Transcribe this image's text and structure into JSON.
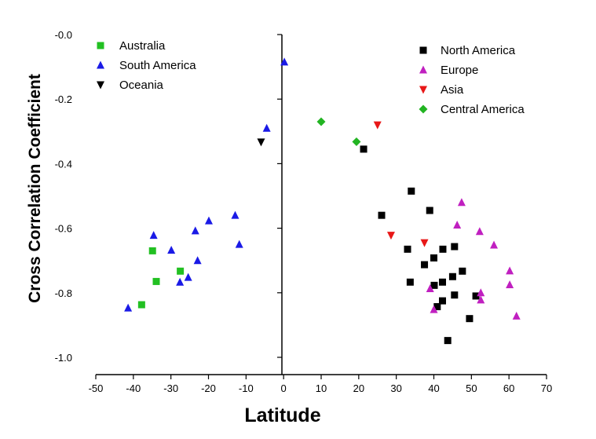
{
  "chart_data": {
    "type": "scatter",
    "xlabel": "Latitude",
    "ylabel": "Cross Correlation Coefficient",
    "xlim": [
      -50,
      70
    ],
    "ylim": [
      -1.05,
      0.0
    ],
    "xticks": [
      "-50",
      "-40",
      "-30",
      "-20",
      "-10",
      "0",
      "10",
      "20",
      "30",
      "40",
      "50",
      "60",
      "70"
    ],
    "yticks": [
      "-0.0",
      "-0.2",
      "-0.4",
      "-0.6",
      "-0.8",
      "-1.0"
    ],
    "grid": false,
    "series": [
      {
        "name": "Australia",
        "marker": "square",
        "color": "#22c022",
        "points": [
          [
            -34.9,
            -0.67
          ],
          [
            -33.9,
            -0.765
          ],
          [
            -27.5,
            -0.733
          ],
          [
            -37.8,
            -0.837
          ]
        ]
      },
      {
        "name": "South America",
        "marker": "triangle-up",
        "color": "#1a1ae6",
        "points": [
          [
            0.2,
            -0.085
          ],
          [
            -4.5,
            -0.29
          ],
          [
            -12.9,
            -0.56
          ],
          [
            -11.8,
            -0.65
          ],
          [
            -19.9,
            -0.577
          ],
          [
            -23.5,
            -0.608
          ],
          [
            -22.9,
            -0.7
          ],
          [
            -25.4,
            -0.752
          ],
          [
            -27.6,
            -0.767
          ],
          [
            -29.9,
            -0.668
          ],
          [
            -34.6,
            -0.622
          ],
          [
            -41.4,
            -0.847
          ]
        ]
      },
      {
        "name": "Oceania",
        "marker": "triangle-down",
        "color": "#000000",
        "points": [
          [
            -6.0,
            -0.333
          ]
        ]
      },
      {
        "name": "North America",
        "marker": "square",
        "color": "#000000",
        "points": [
          [
            21.3,
            -0.355
          ],
          [
            34.0,
            -0.485
          ],
          [
            26.1,
            -0.56
          ],
          [
            38.9,
            -0.545
          ],
          [
            33.0,
            -0.665
          ],
          [
            37.5,
            -0.713
          ],
          [
            40.0,
            -0.692
          ],
          [
            42.4,
            -0.665
          ],
          [
            45.5,
            -0.657
          ],
          [
            47.6,
            -0.733
          ],
          [
            45.0,
            -0.75
          ],
          [
            42.3,
            -0.767
          ],
          [
            40.1,
            -0.777
          ],
          [
            33.7,
            -0.767
          ],
          [
            45.5,
            -0.807
          ],
          [
            42.3,
            -0.825
          ],
          [
            40.9,
            -0.843
          ],
          [
            49.5,
            -0.88
          ],
          [
            43.7,
            -0.948
          ],
          [
            51.2,
            -0.81
          ]
        ]
      },
      {
        "name": "Europe",
        "marker": "triangle-up",
        "color": "#c020c0",
        "points": [
          [
            47.4,
            -0.52
          ],
          [
            46.2,
            -0.59
          ],
          [
            52.2,
            -0.61
          ],
          [
            56.0,
            -0.652
          ],
          [
            60.2,
            -0.732
          ],
          [
            60.2,
            -0.775
          ],
          [
            52.5,
            -0.8
          ],
          [
            52.5,
            -0.822
          ],
          [
            39.0,
            -0.787
          ],
          [
            40.0,
            -0.852
          ],
          [
            62.0,
            -0.872
          ]
        ]
      },
      {
        "name": "Asia",
        "marker": "triangle-down",
        "color": "#e81818",
        "points": [
          [
            25.0,
            -0.28
          ],
          [
            28.6,
            -0.622
          ],
          [
            37.5,
            -0.645
          ]
        ]
      },
      {
        "name": "Central America",
        "marker": "diamond",
        "color": "#22b422",
        "points": [
          [
            10.0,
            -0.27
          ],
          [
            19.4,
            -0.332
          ]
        ]
      }
    ],
    "legends": [
      {
        "placement": "top-left",
        "entries": [
          "Australia",
          "South America",
          "Oceania"
        ]
      },
      {
        "placement": "top-right",
        "entries": [
          "North America",
          "Europe",
          "Asia",
          "Central America"
        ]
      }
    ]
  }
}
